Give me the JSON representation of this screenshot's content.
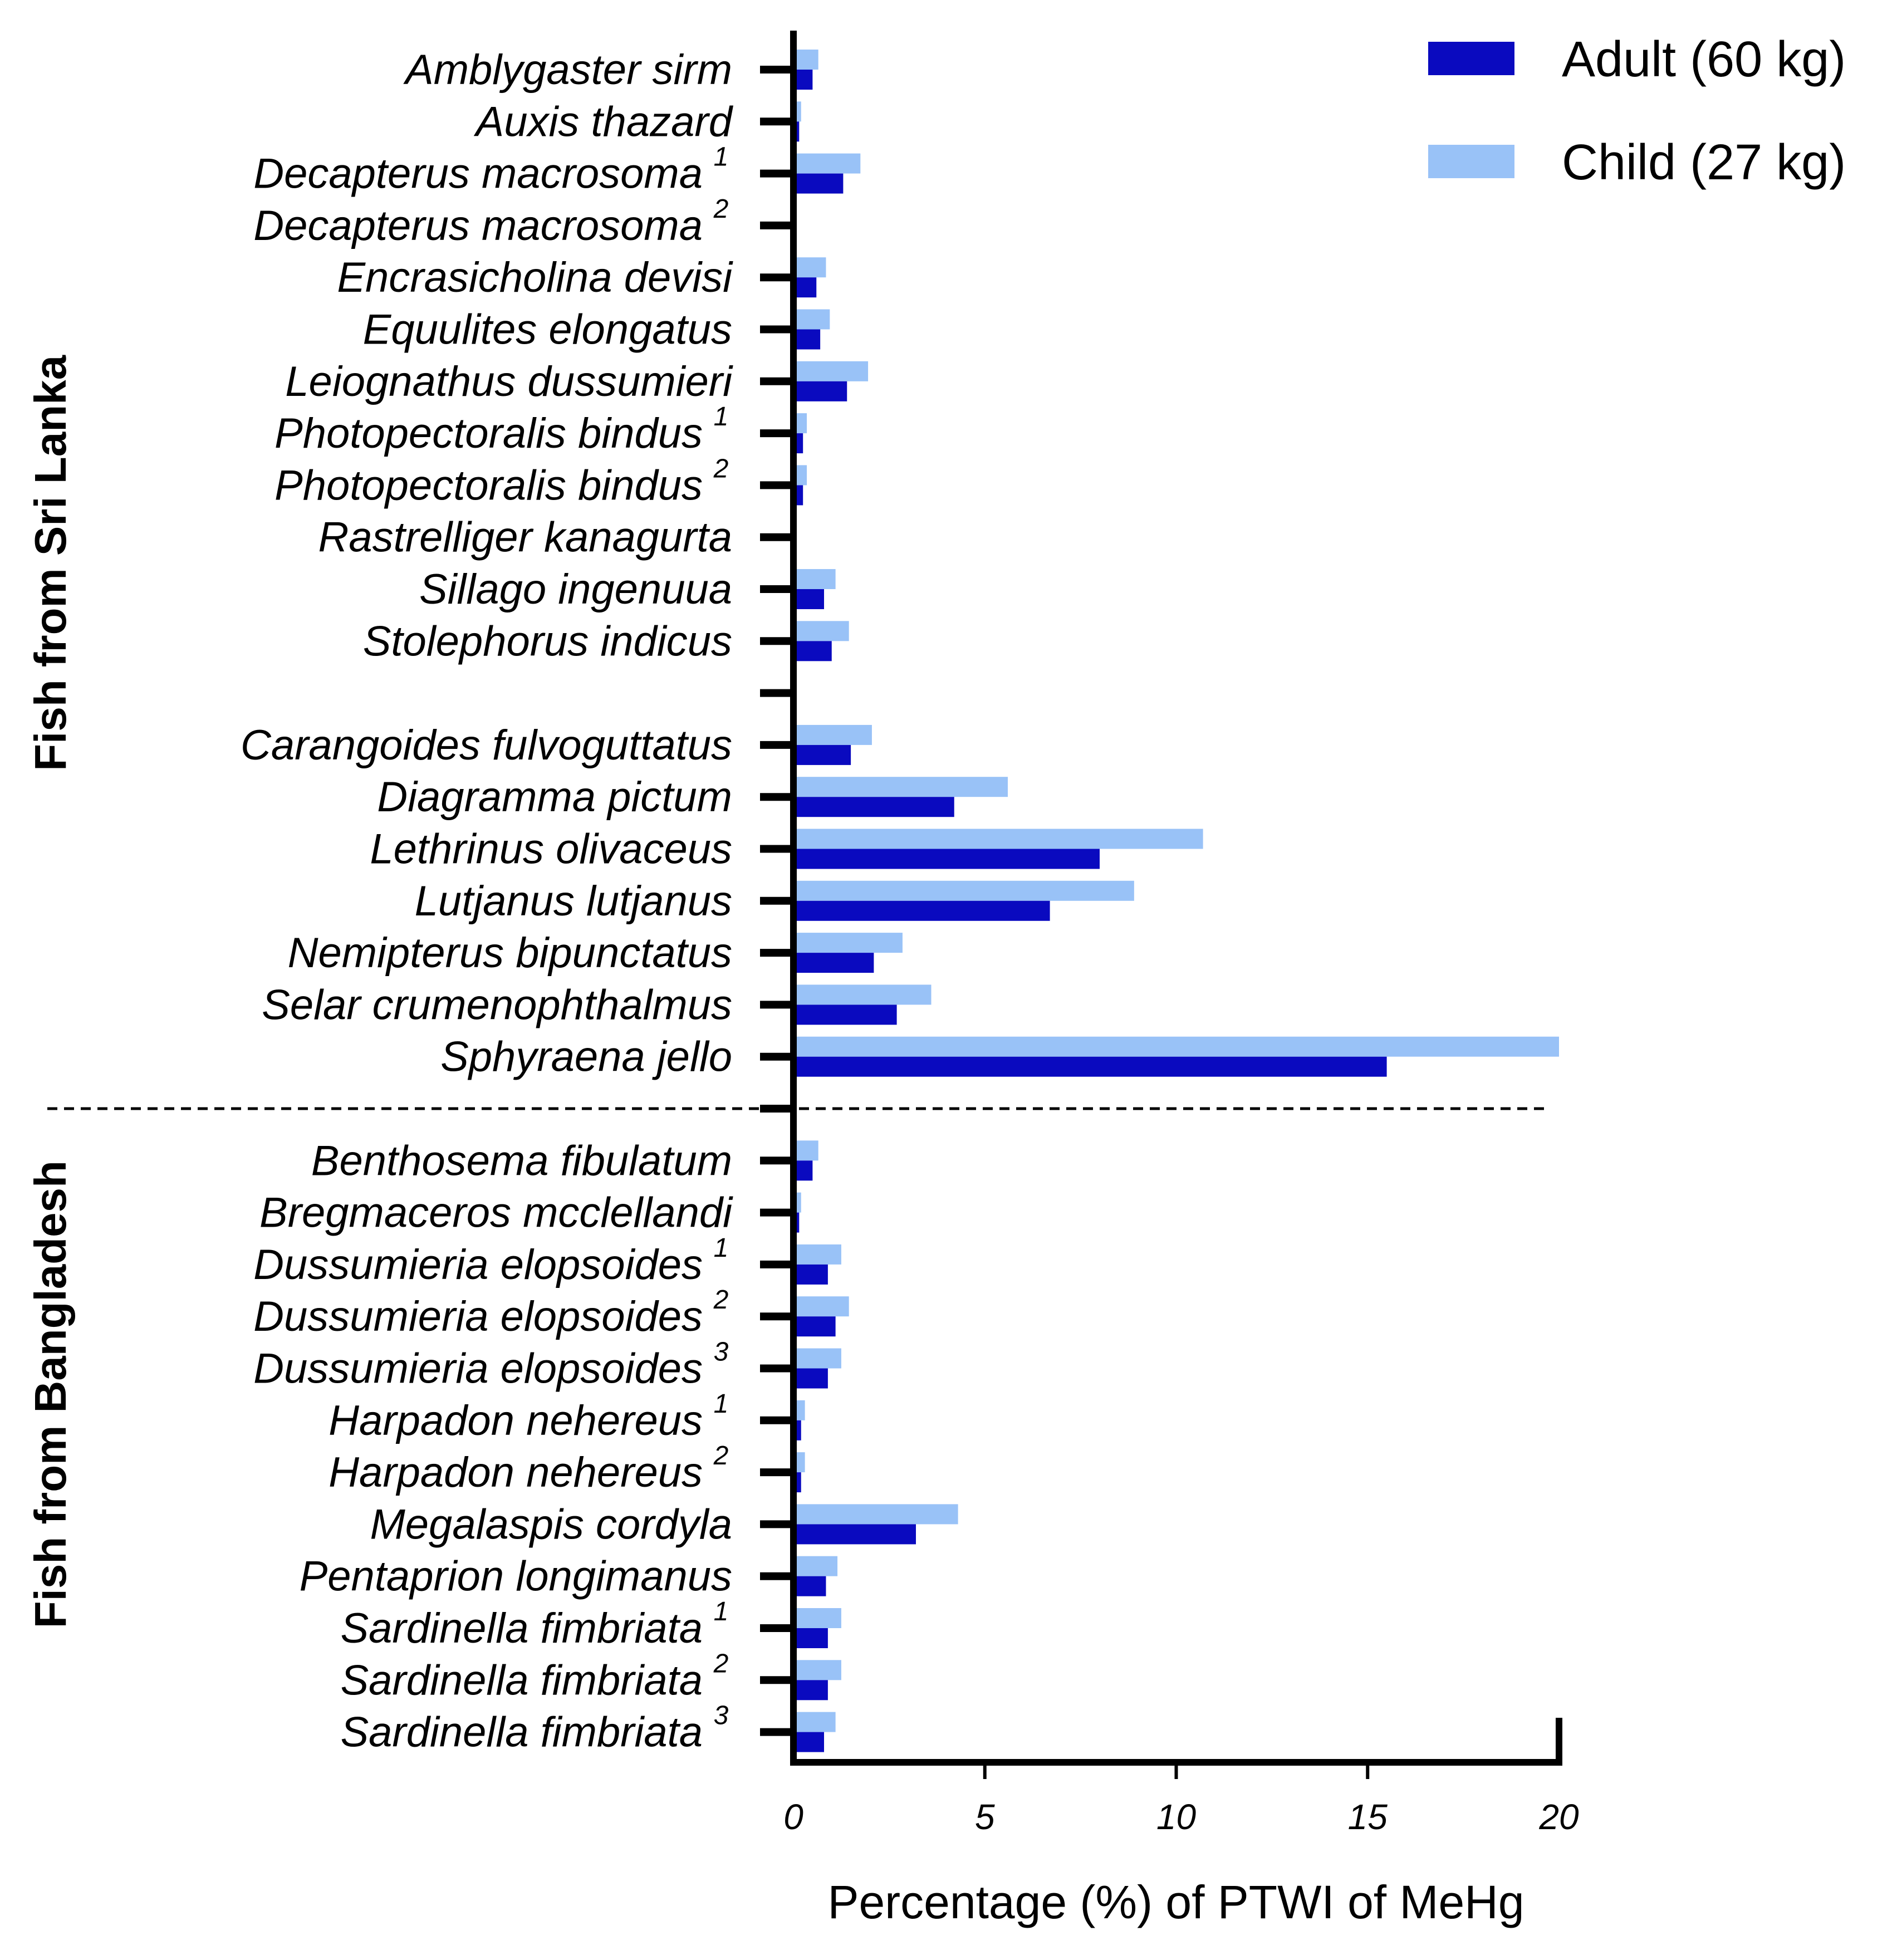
{
  "chart_data": {
    "type": "bar",
    "orientation": "horizontal",
    "xlabel": "Percentage (%) of PTWI of MeHg",
    "xlim": [
      0,
      20
    ],
    "xticks": [
      "0",
      "5",
      "10",
      "15",
      "20"
    ],
    "legend": {
      "position": "top-right",
      "entries": [
        {
          "name": "Adult (60 kg)",
          "color": "#0a0abf"
        },
        {
          "name": "Child (27 kg)",
          "color": "#99c2f7"
        }
      ]
    },
    "groups": [
      {
        "label": "Fish from Sri Lanka",
        "first": 0,
        "last": 19
      },
      {
        "label": "Fish from Bangladesh",
        "first": 20,
        "last": 31
      }
    ],
    "series": [
      {
        "name": "Adult (60 kg)",
        "color": "#0a0abf",
        "values": [
          0.5,
          0.15,
          1.3,
          0,
          0.6,
          0.7,
          1.4,
          0.25,
          0.25,
          0,
          0.8,
          1.0,
          1.5,
          4.2,
          8.0,
          6.7,
          2.1,
          2.7,
          15.5,
          0.5,
          0.15,
          0.9,
          1.1,
          0.9,
          0.2,
          0.2,
          3.2,
          0.85,
          0.9,
          0.9,
          0.8
        ]
      },
      {
        "name": "Child (27 kg)",
        "color": "#99c2f7",
        "values": [
          0.65,
          0.2,
          1.75,
          0,
          0.85,
          0.95,
          1.95,
          0.35,
          0.35,
          0,
          1.1,
          1.45,
          2.05,
          5.6,
          10.7,
          8.9,
          2.85,
          3.6,
          20.0,
          0.65,
          0.2,
          1.25,
          1.45,
          1.25,
          0.3,
          0.3,
          4.3,
          1.15,
          1.25,
          1.25,
          1.1
        ]
      }
    ],
    "categories": [
      {
        "name": "Amblygaster sirm",
        "sup": "",
        "row": 0
      },
      {
        "name": "Auxis thazard",
        "sup": "",
        "row": 1
      },
      {
        "name": "Decapterus macrosoma",
        "sup": "1",
        "row": 2
      },
      {
        "name": "Decapterus macrosoma",
        "sup": "2",
        "row": 3
      },
      {
        "name": "Encrasicholina devisi",
        "sup": "",
        "row": 4
      },
      {
        "name": "Equulites elongatus",
        "sup": "",
        "row": 5
      },
      {
        "name": "Leiognathus dussumieri",
        "sup": "",
        "row": 6
      },
      {
        "name": "Photopectoralis bindus",
        "sup": "1",
        "row": 7
      },
      {
        "name": "Photopectoralis bindus",
        "sup": "2",
        "row": 8
      },
      {
        "name": "Rastrelliger kanagurta",
        "sup": "",
        "row": 9
      },
      {
        "name": "Sillago ingenuua",
        "sup": "",
        "row": 10
      },
      {
        "name": "Stolephorus indicus",
        "sup": "",
        "row": 11
      },
      {
        "name": "Carangoides fulvoguttatus",
        "sup": "",
        "row": 13
      },
      {
        "name": "Diagramma pictum",
        "sup": "",
        "row": 14
      },
      {
        "name": "Lethrinus olivaceus",
        "sup": "",
        "row": 15
      },
      {
        "name": "Lutjanus lutjanus",
        "sup": "",
        "row": 16
      },
      {
        "name": "Nemipterus bipunctatus",
        "sup": "",
        "row": 17
      },
      {
        "name": "Selar crumenophthalmus",
        "sup": "",
        "row": 18
      },
      {
        "name": "Sphyraena jello",
        "sup": "",
        "row": 19
      },
      {
        "name": "Benthosema fibulatum",
        "sup": "",
        "row": 21
      },
      {
        "name": "Bregmaceros mcclellandi",
        "sup": "",
        "row": 22
      },
      {
        "name": "Dussumieria elopsoides",
        "sup": "1",
        "row": 23
      },
      {
        "name": "Dussumieria elopsoides",
        "sup": "2",
        "row": 24
      },
      {
        "name": "Dussumieria elopsoides",
        "sup": "3",
        "row": 25
      },
      {
        "name": "Harpadon nehereus",
        "sup": "1",
        "row": 26
      },
      {
        "name": "Harpadon nehereus",
        "sup": "2",
        "row": 27
      },
      {
        "name": "Megalaspis cordyla",
        "sup": "",
        "row": 28
      },
      {
        "name": "Pentaprion longimanus",
        "sup": "",
        "row": 29
      },
      {
        "name": "Sardinella fimbriata",
        "sup": "1",
        "row": 30
      },
      {
        "name": "Sardinella fimbriata",
        "sup": "2",
        "row": 31
      },
      {
        "name": "Sardinella fimbriata",
        "sup": "3",
        "row": 32
      }
    ],
    "blank_rows": [
      12,
      20
    ],
    "separator_row": 20
  }
}
